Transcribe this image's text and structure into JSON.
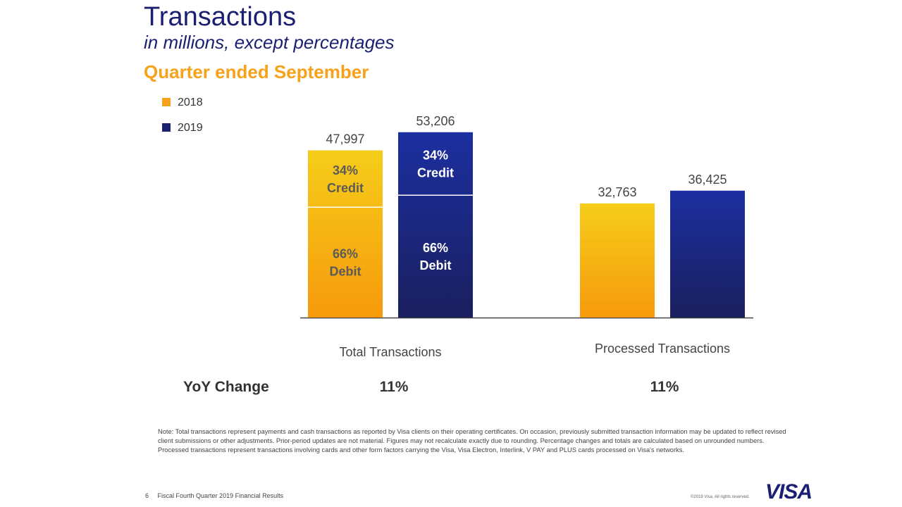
{
  "header": {
    "title": "Transactions",
    "subtitle": "in millions, except percentages",
    "period": "Quarter ended September"
  },
  "colors": {
    "y2018_top": "#f5cd1a",
    "y2018_bottom": "#f79a0c",
    "y2019_top": "#1c2fa0",
    "y2019_bottom": "#1a1f5e",
    "brand": "#1a1f71",
    "accent": "#f7a21b"
  },
  "chart_data": {
    "type": "bar",
    "title": "Transactions",
    "categories": [
      "Total Transactions",
      "Processed Transactions"
    ],
    "series": [
      {
        "name": "2018",
        "values": [
          47997,
          32763
        ],
        "value_labels": [
          "47,997",
          "32,763"
        ]
      },
      {
        "name": "2019",
        "values": [
          53206,
          36425
        ],
        "value_labels": [
          "53,206",
          "36,425"
        ]
      }
    ],
    "breakdown": {
      "category": "Total Transactions",
      "segments": [
        {
          "pct_label": "66%",
          "name": "Debit",
          "share": 0.66
        },
        {
          "pct_label": "34%",
          "name": "Credit",
          "share": 0.34
        }
      ]
    },
    "ylim": [
      0,
      57000
    ],
    "xlabel": "",
    "ylabel": "",
    "legend_position": "top-left"
  },
  "legend": [
    {
      "label": "2018"
    },
    {
      "label": "2019"
    }
  ],
  "yoy": {
    "label": "YoY Change",
    "values": [
      "11%",
      "11%"
    ]
  },
  "note": "Note: Total transactions represent payments and cash transactions as reported by Visa clients on their operating certificates. On occasion, previously submitted transaction information may be updated to reflect revised client submissions or other adjustments. Prior-period updates are not material. Figures may not recalculate exactly due to rounding. Percentage changes and totals are calculated based on unrounded numbers. Processed transactions represent transactions involving cards and other form factors carrying the Visa, Visa Electron, Interlink, V PAY and PLUS cards processed on Visa's networks.",
  "footer": {
    "page_number": "6",
    "doc_title": "Fiscal Fourth Quarter 2019 Financial Results",
    "copyright": "©2019 Visa. All rights reserved.",
    "logo_text": "VISA"
  }
}
